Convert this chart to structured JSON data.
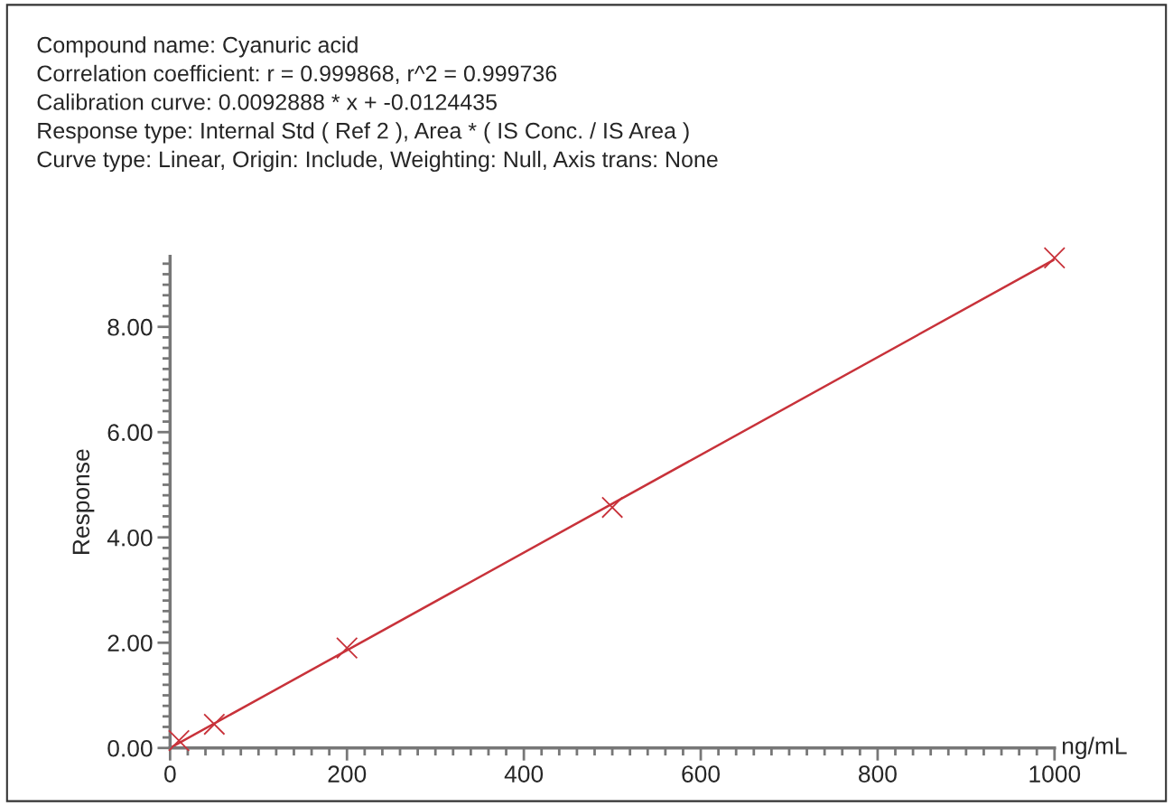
{
  "chart_data": {
    "type": "scatter",
    "annotations": [
      "Compound name: Cyanuric acid",
      "Correlation coefficient: r = 0.999868, r^2 = 0.999736",
      "Calibration curve: 0.0092888 * x + -0.0124435",
      "Response type: Internal Std ( Ref 2 ), Area * ( IS Conc. / IS Area )",
      "Curve type: Linear, Origin: Include, Weighting: Null, Axis trans: None"
    ],
    "xlabel": "ng/mL",
    "ylabel": "Response",
    "series": [
      {
        "color": "#c8323a",
        "marker": "cross",
        "x": [
          10,
          50,
          200,
          500,
          1000
        ],
        "values": [
          0.14,
          0.45,
          1.9,
          4.57,
          9.31
        ]
      },
      {
        "type": "line",
        "color": "#c8323a",
        "line_style": "solid",
        "x": [
          0,
          1000
        ],
        "values": [
          0.0,
          9.28
        ]
      }
    ],
    "xlim": [
      0,
      1000
    ],
    "ylim": [
      0,
      9.34
    ],
    "xticks": [
      0,
      {
        "value": 100,
        "label": null
      },
      200,
      {
        "value": 300,
        "label": null
      },
      400,
      {
        "value": 500,
        "label": null
      },
      600,
      {
        "value": 700,
        "label": null
      },
      800,
      {
        "value": 900,
        "label": null
      },
      1000
    ],
    "yticks": [
      {
        "value": 0,
        "label": "0.00"
      },
      {
        "value": 1,
        "label": null
      },
      {
        "value": 2,
        "label": "2.00"
      },
      {
        "value": 3,
        "label": null
      },
      {
        "value": 4,
        "label": "4.00"
      },
      {
        "value": 5,
        "label": null
      },
      {
        "value": 6,
        "label": "6.00"
      },
      {
        "value": 7,
        "label": null
      },
      {
        "value": 8,
        "label": "8.00"
      },
      {
        "value": 9,
        "label": null
      }
    ],
    "grid": false,
    "legend": false
  }
}
